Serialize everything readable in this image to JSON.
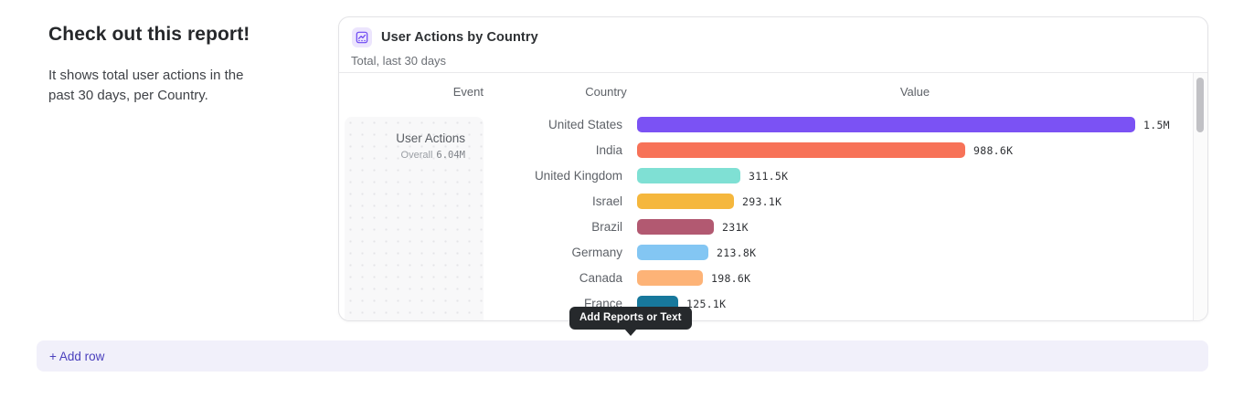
{
  "page": {
    "heading": "Check out this report!",
    "description": "It shows total user actions in the past 30 days, per Country.",
    "add_row_label": "+ Add row",
    "tooltip_label": "Add Reports or Text"
  },
  "report_card": {
    "icon": "insights-line-chart-icon",
    "title": "User Actions by Country",
    "subtitle": "Total, last 30 days",
    "columns": {
      "event": "Event",
      "country": "Country",
      "value": "Value"
    },
    "event_cell": {
      "event_name": "User Actions",
      "overall_label": "Overall",
      "overall_value": "6.04M"
    }
  },
  "chart_data": {
    "type": "bar",
    "orientation": "horizontal",
    "title": "User Actions by Country",
    "series_name": "User Actions",
    "overall_total": "6.04M",
    "categories": [
      "United States",
      "India",
      "United Kingdom",
      "Israel",
      "Brazil",
      "Germany",
      "Canada",
      "France"
    ],
    "values": [
      1500000,
      988600,
      311500,
      293100,
      231000,
      213800,
      198600,
      125100
    ],
    "value_labels": [
      "1.5M",
      "988.6K",
      "311.5K",
      "293.1K",
      "231K",
      "213.8K",
      "198.6K",
      "125.1K"
    ],
    "bar_colors": [
      "#7b52f4",
      "#f77258",
      "#7fe0d4",
      "#f5b73d",
      "#b25971",
      "#83c6f3",
      "#fdb377",
      "#17789c"
    ],
    "xlim": [
      0,
      1500000
    ],
    "grid": false,
    "legend": false
  },
  "colors": {
    "accent_purple": "#7b52f4",
    "add_row_bg": "#f1f0fa",
    "add_row_text": "#4a40bd",
    "tooltip_bg": "#26292c"
  }
}
